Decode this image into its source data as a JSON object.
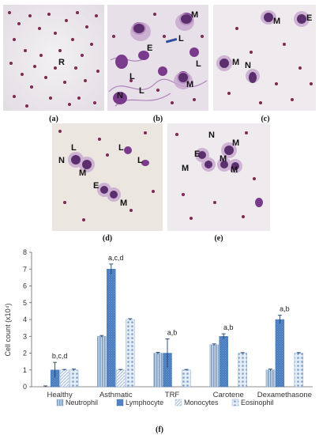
{
  "panels": [
    {
      "label": "(a)",
      "cells": [
        "R"
      ]
    },
    {
      "label": "(b)",
      "cells": [
        "M",
        "E",
        "L",
        "L",
        "L",
        "N",
        "L",
        "M"
      ]
    },
    {
      "label": "(c)",
      "cells": [
        "M",
        "E",
        "M",
        "N"
      ]
    },
    {
      "label": "(d)",
      "cells": [
        "L",
        "N",
        "M",
        "L",
        "L",
        "E",
        "M"
      ]
    },
    {
      "label": "(e)",
      "cells": [
        "N",
        "M",
        "E",
        "M",
        "M",
        "M"
      ]
    }
  ],
  "figure_label": "(f)",
  "colors": {
    "neutrophil": "#a9c3dc",
    "lymphocyte": "#4a7ebf",
    "monocytes": "#d9e4f0",
    "eosinophil": "#bccfe6",
    "stain_purple": "#7a3b8c",
    "rbc": "#7c2a52"
  },
  "chart_data": {
    "type": "bar",
    "categories": [
      "Healthy",
      "Asthmatic",
      "TRF",
      "Carotene",
      "Dexamethasone"
    ],
    "series": [
      {
        "name": "Neutrophil",
        "values": [
          0.0,
          3.0,
          2.0,
          2.5,
          1.0
        ],
        "errors": [
          0.05,
          0.05,
          0.05,
          0.05,
          0.05
        ]
      },
      {
        "name": "Lymphocyte",
        "values": [
          1.0,
          7.0,
          2.0,
          3.0,
          4.0
        ],
        "errors": [
          0.45,
          0.3,
          0.85,
          0.15,
          0.25
        ]
      },
      {
        "name": "Monocytes",
        "values": [
          1.0,
          1.0,
          0.0,
          0.0,
          0.0
        ],
        "errors": [
          0.03,
          0.03,
          0.0,
          0.0,
          0.0
        ]
      },
      {
        "name": "Eosinophil",
        "values": [
          1.0,
          4.0,
          1.0,
          2.0,
          2.0
        ],
        "errors": [
          0.05,
          0.05,
          0.03,
          0.03,
          0.03
        ]
      }
    ],
    "annotations": [
      "b,c,d",
      "a,c,d",
      "a,b",
      "a,b",
      "a,b"
    ],
    "ylabel": "Cell count (x10⁴)",
    "ylim": [
      0,
      8
    ],
    "yticks": [
      "0",
      "1",
      "2",
      "3",
      "4",
      "5",
      "6",
      "7",
      "8"
    ],
    "legend_position": "bottom",
    "grid": false
  }
}
